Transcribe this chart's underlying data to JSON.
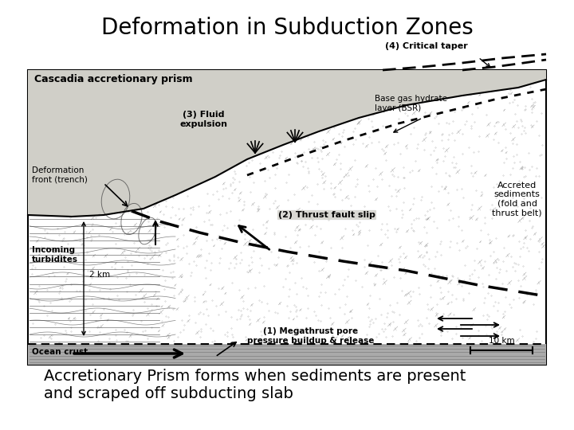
{
  "title": "Deformation in Subduction Zones",
  "subtitle_line1": "Accretionary Prism forms when sediments are present",
  "subtitle_line2": "and scraped off subducting slab",
  "title_fontsize": 20,
  "subtitle_fontsize": 14,
  "background_color": "#ffffff",
  "diagram_label": "Cascadia accretionary prism",
  "label_critical_taper": "(4) Critical taper",
  "label_bsr": "Base gas hydrate\nlayer (BSR)",
  "label_fluid": "(3) Fluid\nexpulsion",
  "label_deformation": "Deformation\nfront (trench)",
  "label_turbidites": "Incoming\nturbidites",
  "label_2km": "2 km",
  "label_ocean": "Ocean crust",
  "label_thrust": "(2) Thrust fault slip",
  "label_accreted": "Accreted\nsediments\n(fold and\nthrust belt)",
  "label_megathrust": "(1) Megathrust pore\npressure buildup & release",
  "label_10km": "10 km",
  "box_facecolor": "#e8e8e0",
  "crust_facecolor": "#aaaaaa",
  "prism_facecolor": "#cccccc"
}
